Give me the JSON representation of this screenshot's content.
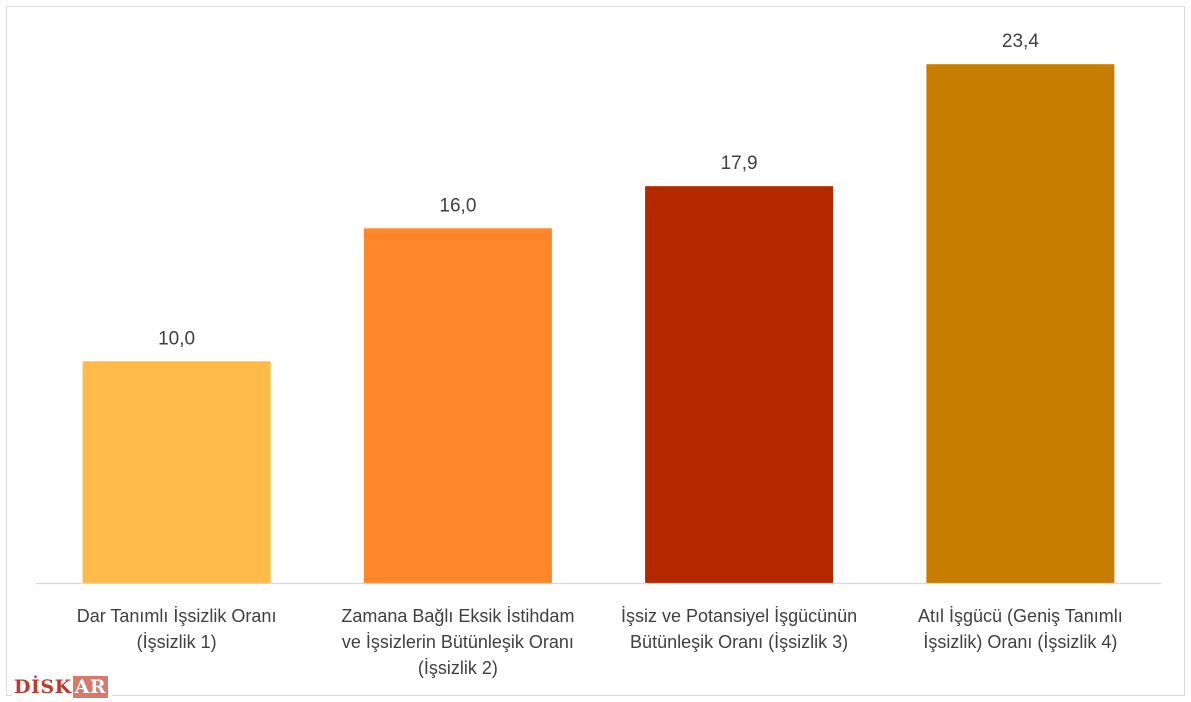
{
  "chart_data": {
    "type": "bar",
    "title": "",
    "xlabel": "",
    "ylabel": "",
    "ylim": [
      0,
      25
    ],
    "grid": false,
    "legend": "none",
    "categories": [
      [
        "Dar Tanımlı İşsizlik Oranı",
        "(İşsizlik 1)"
      ],
      [
        "Zamana Bağlı Eksik İstihdam",
        "ve İşsizlerin Bütünleşik Oranı",
        "(İşsizlik 2)"
      ],
      [
        "İşsiz ve Potansiyel İşgücünün",
        "Bütünleşik Oranı (İşsizlik 3)"
      ],
      [
        "Atıl İşgücü (Geniş Tanımlı",
        "İşsizlik) Oranı (İşsizlik 4)"
      ]
    ],
    "values": [
      10.0,
      16.0,
      17.9,
      23.4
    ],
    "value_labels": [
      "10,0",
      "16,0",
      "17,9",
      "23,4"
    ],
    "colors": [
      "#FFBA47",
      "#FF8629",
      "#B32800",
      "#C77D00"
    ]
  },
  "logo": {
    "main": "DİSK",
    "tail": "AR"
  }
}
